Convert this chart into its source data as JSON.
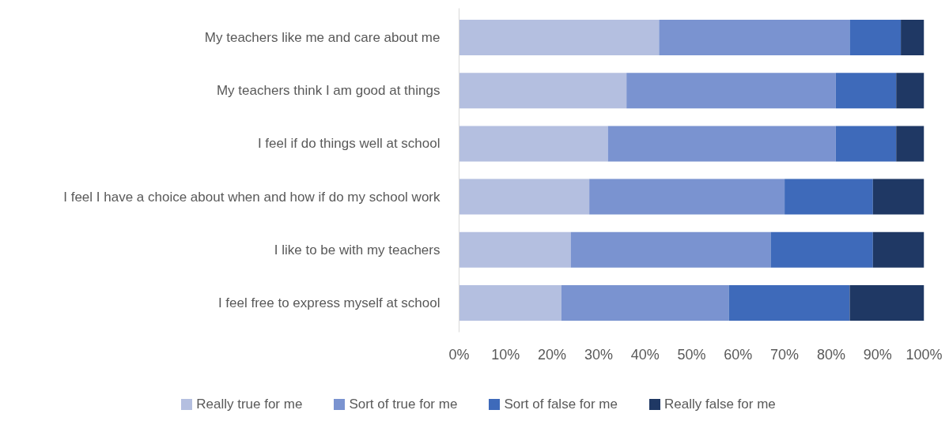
{
  "chart_data": {
    "type": "bar",
    "orientation": "horizontal",
    "stacked": true,
    "categories": [
      "My teachers like me and care about me",
      "My teachers think I am good at things",
      "I feel if do things well at school",
      "I feel I have a choice about when and how if do my school work",
      "I like to be with my teachers",
      "I feel free to express myself at school"
    ],
    "series": [
      {
        "name": "Really true for me",
        "color": "#b4bfe0",
        "values": [
          43,
          36,
          32,
          28,
          24,
          22
        ]
      },
      {
        "name": "Sort of true for me",
        "color": "#7a93d0",
        "values": [
          41,
          45,
          49,
          42,
          43,
          36
        ]
      },
      {
        "name": "Sort of false for me",
        "color": "#3e6aba",
        "values": [
          11,
          13,
          13,
          19,
          22,
          26
        ]
      },
      {
        "name": "Really false for me",
        "color": "#1f3864",
        "values": [
          5,
          6,
          6,
          11,
          11,
          16
        ]
      }
    ],
    "xlim": [
      0,
      100
    ],
    "xticks": [
      {
        "value": 0,
        "label": "0%"
      },
      {
        "value": 10,
        "label": "10%"
      },
      {
        "value": 20,
        "label": "20%"
      },
      {
        "value": 30,
        "label": "30%"
      },
      {
        "value": 40,
        "label": "40%"
      },
      {
        "value": 50,
        "label": "50%"
      },
      {
        "value": 60,
        "label": "60%"
      },
      {
        "value": 70,
        "label": "70%"
      },
      {
        "value": 80,
        "label": "80%"
      },
      {
        "value": 90,
        "label": "90%"
      },
      {
        "value": 100,
        "label": "100%"
      }
    ],
    "grid": false,
    "legend": "bottom"
  }
}
